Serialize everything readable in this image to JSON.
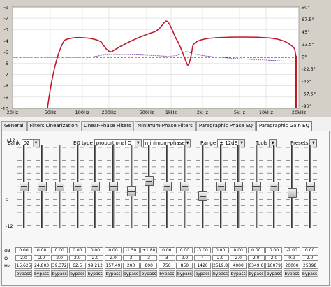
{
  "plot": {
    "y_left_ticks": [
      "-1",
      "-2",
      "-3",
      "-4",
      "-5",
      "-6",
      "-7",
      "-8",
      "-9",
      "-10"
    ],
    "y_right_ticks": [
      "90°",
      "67.5°",
      "45°",
      "22.5°",
      "0°",
      "-22.5°",
      "-45°",
      "-67.5°",
      "-90°"
    ],
    "x_ticks": [
      "20Hz",
      "50Hz",
      "100Hz",
      "200Hz",
      "500Hz",
      "1kHz",
      "2kHz",
      "5kHz",
      "10kHz",
      "20kHz"
    ],
    "colors": {
      "magnitude": "#c0182a",
      "phase": "#8040a0",
      "reference": "#202020",
      "background": "#ffffff"
    }
  },
  "tabs": [
    "General",
    "Filters Linearization",
    "Linear-Phase Filters",
    "Minimum-Phase Filters",
    "Paragraphic Phase EQ",
    "Paragraphic Gain EQ"
  ],
  "active_tab": 5,
  "toolbar": {
    "bank_label": "Bank",
    "bank_value": "02",
    "eqtype_label": "EQ type",
    "eqtype_value": "proportional Q",
    "phase_value": "minimum-phase",
    "range_label": "Range",
    "range_value": "± 12dB",
    "tools_label": "Tools",
    "presets_label": "Presets"
  },
  "scale": {
    "top": "+12",
    "mid": "0",
    "bottom": "-12"
  },
  "row_labels": {
    "db": "dB",
    "q": "Q",
    "hz": "Hz"
  },
  "bands": [
    {
      "db": "0.00",
      "q": "2.0",
      "hz": "15.625",
      "mode": "bypass",
      "gain": 0
    },
    {
      "db": "0.00",
      "q": "2.0",
      "hz": "24.803",
      "mode": "bypass",
      "gain": 0
    },
    {
      "db": "0.00",
      "q": "2.0",
      "hz": "39.372",
      "mode": "bypass",
      "gain": 0
    },
    {
      "db": "0.00",
      "q": "2.0",
      "hz": "62.5",
      "mode": "bypass",
      "gain": 0
    },
    {
      "db": "0.00",
      "q": "2.0",
      "hz": "99.212",
      "mode": "bypass",
      "gain": 0
    },
    {
      "db": "0.00",
      "q": "2.0",
      "hz": "157.49",
      "mode": "bypass",
      "gain": 0
    },
    {
      "db": "-1.50",
      "q": "3",
      "hz": "200",
      "mode": "bypass",
      "gain": -1.5
    },
    {
      "db": "+1.80",
      "q": "3",
      "hz": "800",
      "mode": "bypass",
      "gain": 1.8
    },
    {
      "db": "0.00",
      "q": "3",
      "hz": "750",
      "mode": "bypass",
      "gain": 0
    },
    {
      "db": "0.00",
      "q": "2.0",
      "hz": "850",
      "mode": "bypass",
      "gain": 0
    },
    {
      "db": "-3.00",
      "q": "4",
      "hz": "1420",
      "mode": "bypass",
      "gain": -3
    },
    {
      "db": "0.00",
      "q": "2.0",
      "hz": "2519.8",
      "mode": "bypass",
      "gain": 0
    },
    {
      "db": "0.00",
      "q": "2.0",
      "hz": "4000",
      "mode": "bypass",
      "gain": 0
    },
    {
      "db": "0.00",
      "q": "2.0",
      "hz": "6349.6",
      "mode": "bypass",
      "gain": 0
    },
    {
      "db": "0.00",
      "q": "2.0",
      "hz": "10079",
      "mode": "bypass",
      "gain": 0
    },
    {
      "db": "-2.00",
      "q": "0.9",
      "hz": "20000",
      "mode": "bypass",
      "gain": -2
    },
    {
      "db": "0.00",
      "q": "2.0",
      "hz": "25398",
      "mode": "bypass",
      "gain": 0
    }
  ]
}
